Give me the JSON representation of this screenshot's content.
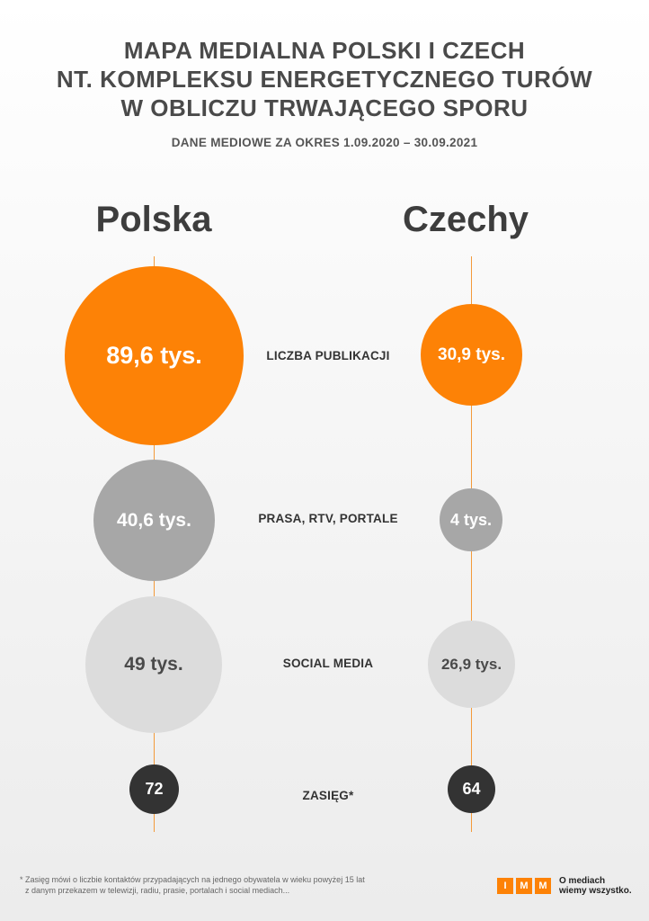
{
  "header": {
    "title_lines": [
      "MAPA MEDIALNA POLSKI I CZECH",
      "NT. KOMPLEKSU ENERGETYCZNEGO TURÓW",
      "W OBLICZU TRWAJĄCEGO SPORU"
    ],
    "subtitle": "DANE MEDIOWE ZA OKRES 1.09.2020 – 30.09.2021"
  },
  "countries": {
    "left": "Polska",
    "right": "Czechy"
  },
  "rows": [
    {
      "label": "LICZBA PUBLIKACJI",
      "polska": "89,6 tys.",
      "czechy": "30,9 tys."
    },
    {
      "label": "PRASA, RTV, PORTALE",
      "polska": "40,6 tys.",
      "czechy": "4 tys."
    },
    {
      "label": "SOCIAL MEDIA",
      "polska": "49 tys.",
      "czechy": "26,9 tys."
    },
    {
      "label": "ZASIĘG*",
      "polska": "72",
      "czechy": "64"
    }
  ],
  "footnote": {
    "lines": [
      "* Zasięg mówi o liczbie kontaktów przypadających na jednego obywatela w wieku powyżej 15 lat",
      "z danym przekazem w telewizji, radiu, prasie, portalach i social mediach..."
    ]
  },
  "logo": {
    "letters": [
      "I",
      "M",
      "M"
    ],
    "tagline_lines": [
      "O mediach",
      "wiemy wszystko."
    ]
  },
  "colors": {
    "accent": "#fd8206",
    "gray": "#a7a7a7",
    "light_gray": "#dcdcdc",
    "dark": "#333333"
  }
}
